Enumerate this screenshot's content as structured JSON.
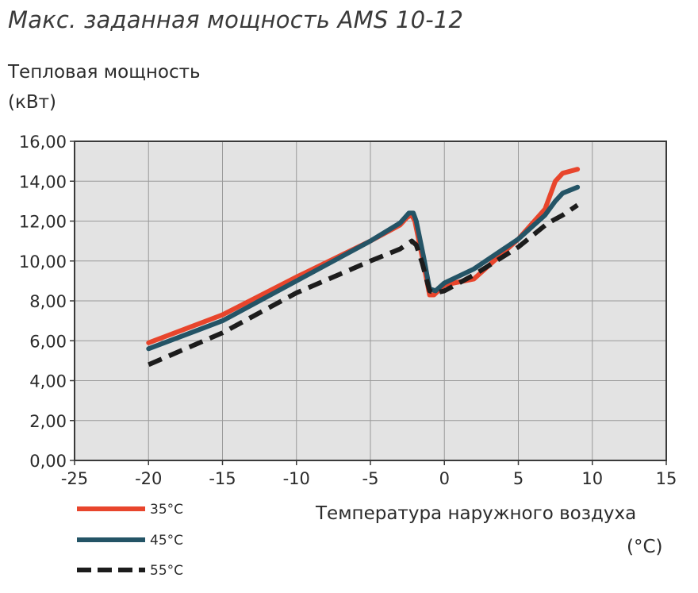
{
  "chart_data": {
    "type": "line",
    "title": "Макс. заданная мощность AMS 10-12",
    "ylabel_line1": "Тепловая мощность",
    "ylabel_line2": "(кВт)",
    "xlabel": "Температура наружного воздуха",
    "xlabel_unit": "(°C)",
    "xlim": [
      -25,
      15
    ],
    "ylim": [
      0,
      16
    ],
    "xticks": [
      -25,
      -20,
      -15,
      -10,
      -5,
      0,
      5,
      10,
      15
    ],
    "yticks": [
      0,
      2,
      4,
      6,
      8,
      10,
      12,
      14,
      16
    ],
    "ytick_labels": [
      "0,00",
      "2,00",
      "4,00",
      "6,00",
      "8,00",
      "10,00",
      "12,00",
      "14,00",
      "16,00"
    ],
    "grid": true,
    "legend_position": "bottom-left",
    "series": [
      {
        "name": "35°C",
        "color": "#e8452c",
        "dashed": false,
        "points": [
          [
            -20,
            5.9
          ],
          [
            -15,
            7.3
          ],
          [
            -10,
            9.2
          ],
          [
            -5,
            11.0
          ],
          [
            -3,
            11.8
          ],
          [
            -2.5,
            12.2
          ],
          [
            -2.2,
            12.3
          ],
          [
            -2.0,
            12.0
          ],
          [
            -1.5,
            10.2
          ],
          [
            -1.0,
            8.3
          ],
          [
            -0.7,
            8.3
          ],
          [
            0,
            8.8
          ],
          [
            2,
            9.1
          ],
          [
            5,
            11.1
          ],
          [
            6.8,
            12.6
          ],
          [
            7.5,
            14.0
          ],
          [
            8.0,
            14.4
          ],
          [
            9.0,
            14.6
          ]
        ]
      },
      {
        "name": "45°C",
        "color": "#245466",
        "dashed": false,
        "points": [
          [
            -20,
            5.6
          ],
          [
            -15,
            7.0
          ],
          [
            -10,
            9.0
          ],
          [
            -5,
            11.0
          ],
          [
            -3,
            11.9
          ],
          [
            -2.4,
            12.4
          ],
          [
            -2.1,
            12.4
          ],
          [
            -1.9,
            12.0
          ],
          [
            -1.4,
            10.2
          ],
          [
            -1.0,
            8.6
          ],
          [
            -0.6,
            8.5
          ],
          [
            0,
            8.9
          ],
          [
            2,
            9.6
          ],
          [
            5,
            11.1
          ],
          [
            6.8,
            12.3
          ],
          [
            7.5,
            13.0
          ],
          [
            8.0,
            13.4
          ],
          [
            9.0,
            13.7
          ]
        ]
      },
      {
        "name": "55°C",
        "color": "#1c1c1c",
        "dashed": true,
        "points": [
          [
            -20,
            4.8
          ],
          [
            -15,
            6.4
          ],
          [
            -10,
            8.4
          ],
          [
            -5,
            10.0
          ],
          [
            -3,
            10.6
          ],
          [
            -2.2,
            11.0
          ],
          [
            -1.9,
            10.8
          ],
          [
            -1.5,
            9.9
          ],
          [
            -1.0,
            8.5
          ],
          [
            -0.6,
            8.4
          ],
          [
            0,
            8.5
          ],
          [
            2,
            9.3
          ],
          [
            5,
            10.7
          ],
          [
            7,
            11.9
          ],
          [
            8.0,
            12.3
          ],
          [
            9.0,
            12.8
          ]
        ]
      }
    ]
  }
}
